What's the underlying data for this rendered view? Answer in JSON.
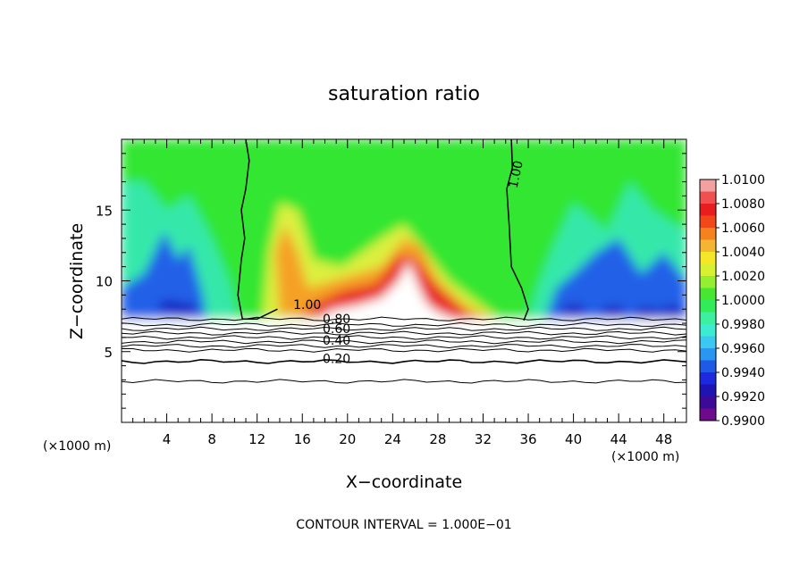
{
  "chart_data": {
    "type": "heatmap",
    "title": "saturation ratio",
    "xlabel": "X−coordinate",
    "ylabel": "Z−coordinate",
    "x_unit_left": "(×1000 m)",
    "x_unit_right": "(×1000 m)",
    "footer": "CONTOUR INTERVAL = 1.000E−01",
    "xlim": [
      0,
      50
    ],
    "ylim": [
      0,
      20
    ],
    "x_ticks": [
      {
        "value": 4,
        "label": "4"
      },
      {
        "value": 8,
        "label": "8"
      },
      {
        "value": 12,
        "label": "12"
      },
      {
        "value": 16,
        "label": "16"
      },
      {
        "value": 20,
        "label": "20"
      },
      {
        "value": 24,
        "label": "24"
      },
      {
        "value": 28,
        "label": "28"
      },
      {
        "value": 32,
        "label": "32"
      },
      {
        "value": 36,
        "label": "36"
      },
      {
        "value": 40,
        "label": "40"
      },
      {
        "value": 44,
        "label": "44"
      },
      {
        "value": 48,
        "label": "48"
      }
    ],
    "y_ticks": [
      {
        "value": 5,
        "label": "5"
      },
      {
        "value": 10,
        "label": "10"
      },
      {
        "value": 15,
        "label": "15"
      }
    ],
    "colorbar": {
      "min": 0.99,
      "max": 1.01,
      "labels": [
        "1.0100",
        "1.0080",
        "1.0060",
        "1.0040",
        "1.0020",
        "1.0000",
        "0.9980",
        "0.9960",
        "0.9940",
        "0.9920",
        "0.9900"
      ],
      "colors": [
        "#f2a0a0",
        "#f05050",
        "#e81e1e",
        "#f04818",
        "#f5821e",
        "#f5b432",
        "#f5e628",
        "#d7f032",
        "#96ee32",
        "#46e632",
        "#32eb5a",
        "#3cf0a0",
        "#3cebd2",
        "#3cc8f0",
        "#2a96f0",
        "#1e5ae6",
        "#1e28dc",
        "#1e14b4",
        "#3c0a96",
        "#6e0a8c"
      ]
    },
    "fill_regions": [
      {
        "name": "field",
        "color": "#32e632"
      },
      {
        "name": "cyan-left",
        "color": "#36e8aa"
      },
      {
        "name": "blue-left",
        "color": "#2060e8"
      },
      {
        "name": "cyan-right",
        "color": "#36e8aa"
      },
      {
        "name": "blue-right",
        "color": "#2060e8"
      },
      {
        "name": "yellow-zone",
        "color": "#dcf040"
      },
      {
        "name": "orange-zone",
        "color": "#f5a028"
      },
      {
        "name": "red-zone",
        "color": "#e82828"
      },
      {
        "name": "white-zone",
        "color": "#ffffff"
      }
    ],
    "contour_labels": [
      {
        "text": "1.00",
        "x": 35.0,
        "y": 16.5
      },
      {
        "text": "1.00",
        "x": 15.2,
        "y": 8.0
      },
      {
        "text": "0.80",
        "x": 17.8,
        "y": 7.0
      },
      {
        "text": "0.60",
        "x": 17.8,
        "y": 6.3
      },
      {
        "text": "0.40",
        "x": 17.8,
        "y": 5.5
      },
      {
        "text": "0.20",
        "x": 17.8,
        "y": 4.2
      }
    ],
    "contour_lines": [
      {
        "level": "1.00",
        "points": [
          [
            11.0,
            20.0
          ],
          [
            11.3,
            18.5
          ],
          [
            11.0,
            16.5
          ],
          [
            10.6,
            15.0
          ],
          [
            10.9,
            13.0
          ],
          [
            10.6,
            11.5
          ],
          [
            10.3,
            9.0
          ],
          [
            10.7,
            7.3
          ],
          [
            12.0,
            7.3
          ],
          [
            13.8,
            8.0
          ]
        ]
      },
      {
        "level": "1.00",
        "points": [
          [
            34.5,
            20.0
          ],
          [
            34.6,
            18.0
          ],
          [
            34.1,
            16.5
          ],
          [
            34.3,
            14.0
          ],
          [
            34.5,
            11.0
          ],
          [
            35.4,
            9.5
          ],
          [
            36.0,
            8.0
          ],
          [
            35.6,
            7.2
          ]
        ]
      }
    ],
    "horizontal_contours": [
      7.3,
      6.9,
      6.6,
      6.3,
      6.0,
      5.7,
      5.4,
      5.1,
      4.3,
      2.9
    ]
  }
}
